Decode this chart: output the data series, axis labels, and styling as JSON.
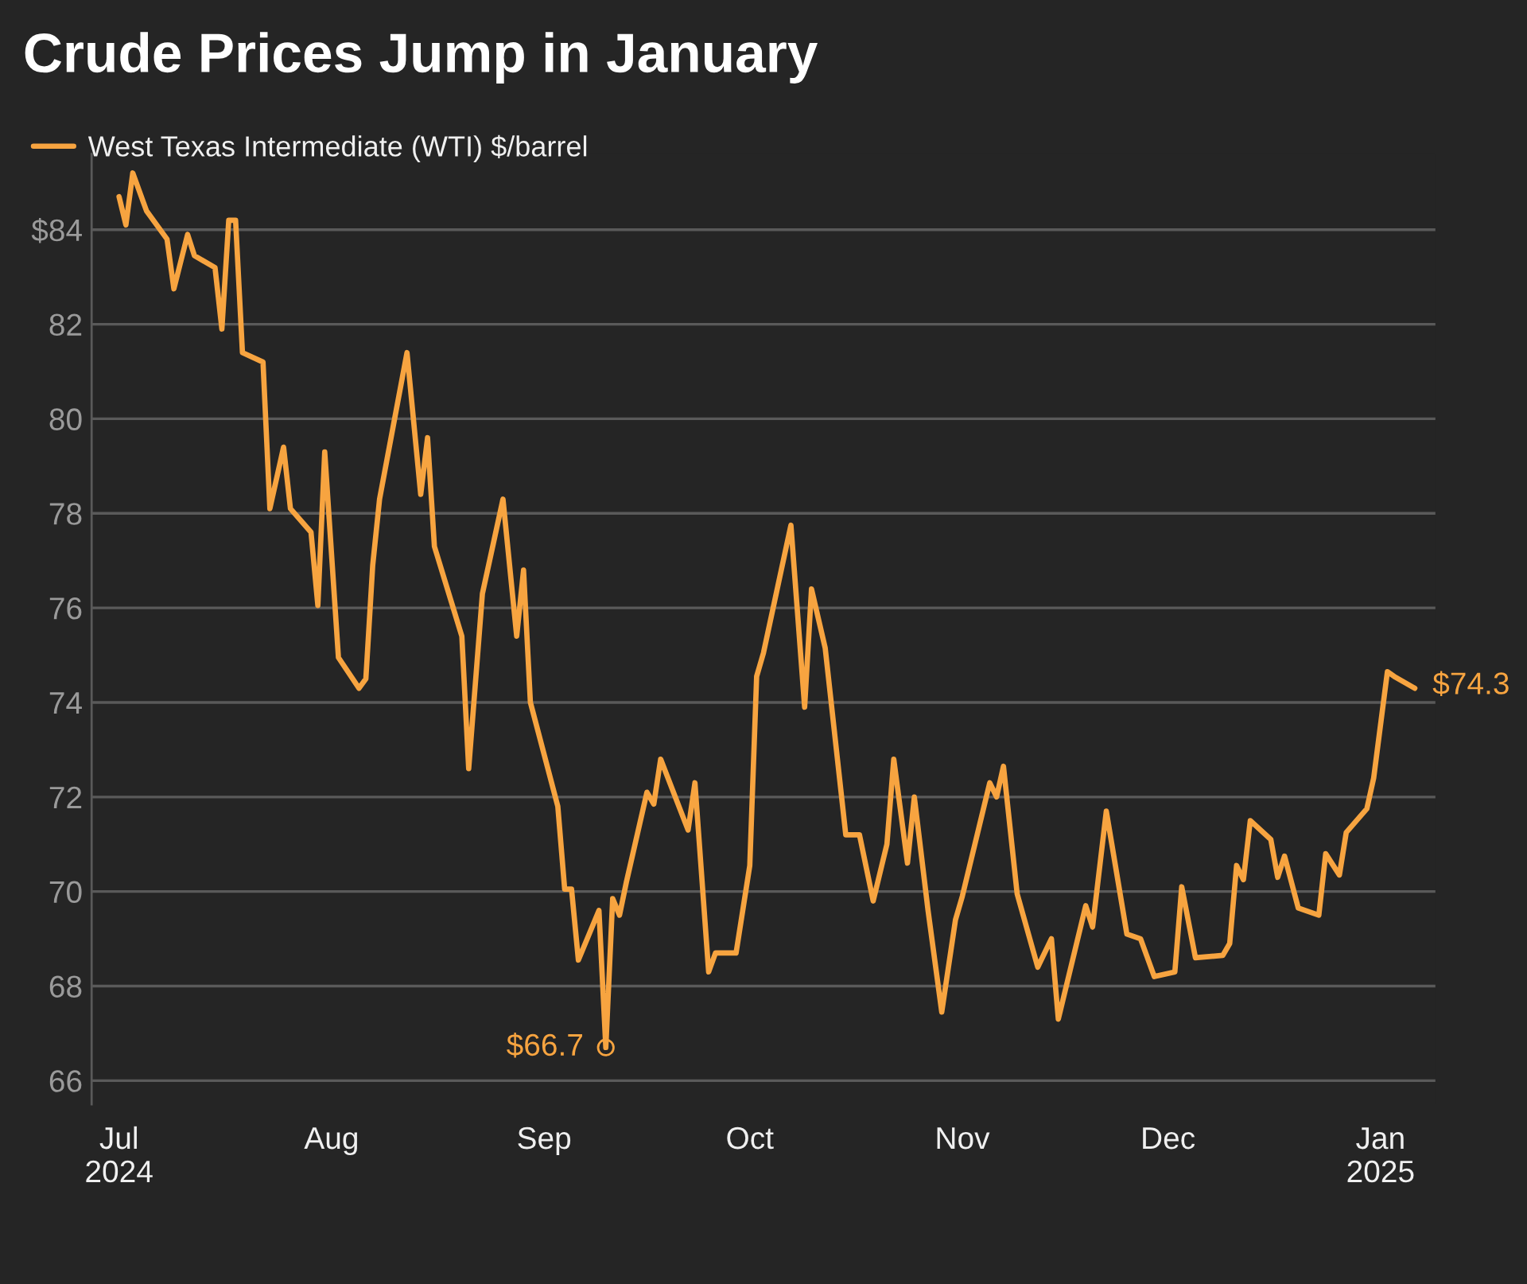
{
  "chart_data": {
    "type": "line",
    "title": "Crude Prices Jump in January",
    "x": [
      "2024-07-01",
      "2024-07-02",
      "2024-07-03",
      "2024-07-05",
      "2024-07-08",
      "2024-07-09",
      "2024-07-11",
      "2024-07-12",
      "2024-07-15",
      "2024-07-16",
      "2024-07-17",
      "2024-07-18",
      "2024-07-19",
      "2024-07-22",
      "2024-07-23",
      "2024-07-25",
      "2024-07-26",
      "2024-07-29",
      "2024-07-30",
      "2024-07-31",
      "2024-08-02",
      "2024-08-05",
      "2024-08-06",
      "2024-08-07",
      "2024-08-08",
      "2024-08-12",
      "2024-08-14",
      "2024-08-15",
      "2024-08-16",
      "2024-08-20",
      "2024-08-21",
      "2024-08-23",
      "2024-08-26",
      "2024-08-28",
      "2024-08-29",
      "2024-08-30",
      "2024-09-03",
      "2024-09-04",
      "2024-09-05",
      "2024-09-06",
      "2024-09-09",
      "2024-09-10",
      "2024-09-11",
      "2024-09-12",
      "2024-09-13",
      "2024-09-16",
      "2024-09-17",
      "2024-09-18",
      "2024-09-22",
      "2024-09-23",
      "2024-09-25",
      "2024-09-26",
      "2024-09-29",
      "2024-10-01",
      "2024-10-02",
      "2024-10-03",
      "2024-10-07",
      "2024-10-09",
      "2024-10-10",
      "2024-10-12",
      "2024-10-15",
      "2024-10-17",
      "2024-10-19",
      "2024-10-21",
      "2024-10-22",
      "2024-10-24",
      "2024-10-25",
      "2024-10-27",
      "2024-10-29",
      "2024-10-31",
      "2024-11-01",
      "2024-11-05",
      "2024-11-06",
      "2024-11-07",
      "2024-11-09",
      "2024-11-12",
      "2024-11-14",
      "2024-11-15",
      "2024-11-19",
      "2024-11-20",
      "2024-11-22",
      "2024-11-25",
      "2024-11-27",
      "2024-11-29",
      "2024-12-02",
      "2024-12-03",
      "2024-12-05",
      "2024-12-09",
      "2024-12-10",
      "2024-12-11",
      "2024-12-12",
      "2024-12-13",
      "2024-12-16",
      "2024-12-17",
      "2024-12-18",
      "2024-12-20",
      "2024-12-23",
      "2024-12-24",
      "2024-12-26",
      "2024-12-27",
      "2024-12-30",
      "2024-12-31",
      "2025-01-02",
      "2025-01-03",
      "2025-01-06"
    ],
    "series": [
      {
        "name": "West Texas Intermediate (WTI) $/barrel",
        "color": "#f7a440",
        "values": [
          84.7,
          84.1,
          85.2,
          84.4,
          83.8,
          82.75,
          83.9,
          83.45,
          83.2,
          81.9,
          84.2,
          84.2,
          81.4,
          81.2,
          78.1,
          79.4,
          78.1,
          77.6,
          76.05,
          79.3,
          74.95,
          74.3,
          74.5,
          76.9,
          78.3,
          81.4,
          78.4,
          79.6,
          77.3,
          75.4,
          72.6,
          76.3,
          78.3,
          75.4,
          76.8,
          74.0,
          71.8,
          70.05,
          70.05,
          68.55,
          69.6,
          66.7,
          69.85,
          69.5,
          70.2,
          72.1,
          71.85,
          72.8,
          71.3,
          72.3,
          68.3,
          68.7,
          68.7,
          70.55,
          74.55,
          75.05,
          77.75,
          73.9,
          76.4,
          75.15,
          71.2,
          71.2,
          69.8,
          71.0,
          72.8,
          70.6,
          72.0,
          69.6,
          67.45,
          69.4,
          69.9,
          72.3,
          72.0,
          72.65,
          69.95,
          68.4,
          69.0,
          67.3,
          69.7,
          69.25,
          71.7,
          69.1,
          69.0,
          68.2,
          68.3,
          70.1,
          68.6,
          68.65,
          68.9,
          70.55,
          70.25,
          71.5,
          71.1,
          70.3,
          70.75,
          69.65,
          69.5,
          70.8,
          70.35,
          71.25,
          71.75,
          72.4,
          74.65,
          74.55,
          74.3
        ]
      }
    ],
    "xlim": [
      "2024-06-27",
      "2025-01-09"
    ],
    "xticks": [
      {
        "value": "2024-07-01",
        "label": "Jul\n2024"
      },
      {
        "value": "2024-08-01",
        "label": "Aug"
      },
      {
        "value": "2024-09-01",
        "label": "Sep"
      },
      {
        "value": "2024-10-01",
        "label": "Oct"
      },
      {
        "value": "2024-11-01",
        "label": "Nov"
      },
      {
        "value": "2024-12-01",
        "label": "Dec"
      },
      {
        "value": "2025-01-01",
        "label": "Jan\n2025"
      }
    ],
    "ylim": [
      65.5,
      85.6
    ],
    "yticks": [
      66,
      68,
      70,
      72,
      74,
      76,
      78,
      80,
      82,
      {
        "value": 84,
        "label": "$84"
      }
    ],
    "grid": "y",
    "legend": "top left",
    "marker": "none",
    "line_style": "solid",
    "annotations": [
      {
        "text": "$66.7",
        "x": "2024-09-10",
        "y": 66.7
      },
      {
        "text": "$74.3",
        "x": "2025-01-06",
        "y": 74.3
      }
    ]
  }
}
